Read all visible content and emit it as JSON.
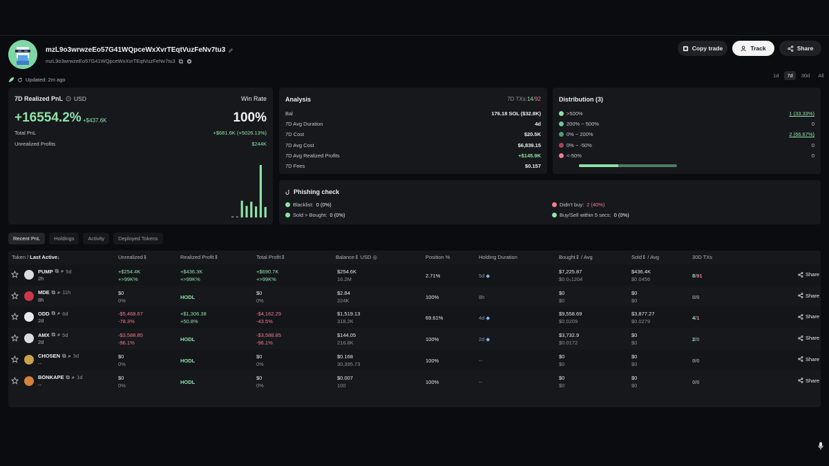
{
  "header": {
    "address": "mzL9o3wrwzeEo57G41WQpceWxXvrTEqtVuzFeNv7tu3",
    "address_small": "mzL9o3wrwzeEo57G41WQpceWxXvrTEqtVuzFeNv7tu3",
    "copy_trade_label": "Copy trade",
    "track_label": "Track",
    "share_label": "Share",
    "updated": "Updated: 2m ago",
    "periods": [
      "1d",
      "7d",
      "30d",
      "All"
    ],
    "active_period": "7d"
  },
  "pnl": {
    "title": "7D Realized PnL",
    "currency": "USD",
    "winrate_label": "Win Rate",
    "pct": "+16554.2%",
    "amount": "+$437.6K",
    "winrate": "100%",
    "total_label": "Total PnL",
    "total_value": "+$681.6K (+5026.13%)",
    "unrealized_label": "Unrealized Profits",
    "unrealized_value": "$244K",
    "bars": [
      0.02,
      0.02,
      0.32,
      0.22,
      0.3,
      0.21,
      1.0,
      0.2
    ]
  },
  "analysis": {
    "title": "Analysis",
    "tx_label": "7D TXs:",
    "tx_buy": "14",
    "tx_sep": "/",
    "tx_sell": "92",
    "rows": [
      {
        "label": "Bal",
        "value": "176.18 SOL ($32.8K)",
        "green": false
      },
      {
        "label": "7D Avg Duration",
        "value": "4d",
        "green": false
      },
      {
        "label": "7D Cost",
        "value": "$20.5K",
        "green": false
      },
      {
        "label": "7D Avg Cost",
        "value": "$6,839.15",
        "green": false
      },
      {
        "label": "7D Avg Realized Profits",
        "value": "+$145.9K",
        "green": true
      },
      {
        "label": "7D Fees",
        "value": "$0.157",
        "green": false
      }
    ]
  },
  "distribution": {
    "title": "Distribution (3)",
    "rows": [
      {
        "label": ">500%",
        "value": "1 (33.33%)",
        "color": "#8ee3a8",
        "underline": true
      },
      {
        "label": "200% ~ 500%",
        "value": "0",
        "color": "#6fc79a",
        "underline": false
      },
      {
        "label": "0% ~ 200%",
        "value": "2 (66.67%)",
        "color": "#4f9e73",
        "underline": true
      },
      {
        "label": "0% ~ -50%",
        "value": "0",
        "color": "#a3455a",
        "underline": false
      },
      {
        "label": "<-50%",
        "value": "0",
        "color": "#f07d8e",
        "underline": false
      }
    ],
    "bar_fill": 0.4
  },
  "phishing": {
    "title": "Phishing check",
    "items": [
      {
        "label": "Blacklist:",
        "value": "0 (0%)",
        "dot": "#8ee3a8",
        "red": false
      },
      {
        "label": "Sold > Bought:",
        "value": "0 (0%)",
        "dot": "#8ee3a8",
        "red": false
      },
      {
        "label": "Didn't buy:",
        "value": "2 (40%)",
        "dot": "#f07d8e",
        "red": true
      },
      {
        "label": "Buy/Sell within 5 secs:",
        "value": "0 (0%)",
        "dot": "#8ee3a8",
        "red": false
      }
    ]
  },
  "tabs": [
    "Recent PnL",
    "Holdings",
    "Activity",
    "Deployed Tokens"
  ],
  "table": {
    "headers": {
      "token": "Token",
      "sep": "/",
      "last_active": "Last Active",
      "unrealized": "Unrealized",
      "realized": "Realized Profit",
      "total": "Total Profit",
      "balance": "Balance",
      "balance_unit": "USD",
      "position": "Position %",
      "holding": "Holding Duration",
      "bought": "Bought",
      "bought_avg": "Avg",
      "sold": "Sold",
      "sold_avg": "Avg",
      "txs": "30D TXs"
    },
    "share_label": "Share",
    "rows": [
      {
        "token": "PUMP",
        "age": "5d",
        "last": "2h",
        "icon": "#d9dde2",
        "unr1": "+$254.4K",
        "unr2": "+>99K%",
        "unr_tone": "green",
        "rea1": "+$436.3K",
        "rea2": "+>99K%",
        "rea_tone": "green",
        "hodl": false,
        "tot1": "+$690.7K",
        "tot2": "+>99K%",
        "tot_tone": "green",
        "bal1": "$254.6K",
        "bal2": "16.2M",
        "pos": "2.71%",
        "hold": "5d",
        "diamond": true,
        "b1": "$7,225.87",
        "b2": "$0.0₅1204",
        "s1": "$436.4K",
        "s2": "$0.0456",
        "tx_a": "8",
        "tx_b": "91",
        "tx_tone": "green"
      },
      {
        "token": "MDE",
        "age": "11h",
        "last": "8h",
        "icon": "#c8384a",
        "unr1": "$0",
        "unr2": "0%",
        "unr_tone": "",
        "rea1": "HODL",
        "rea2": "",
        "rea_tone": "",
        "hodl": true,
        "tot1": "$0",
        "tot2": "0%",
        "tot_tone": "",
        "bal1": "$2.84",
        "bal2": "224K",
        "pos": "100%",
        "hold": "8h",
        "diamond": false,
        "b1": "$0",
        "b2": "$0",
        "s1": "$0",
        "s2": "$0",
        "tx_a": "0",
        "tx_b": "0",
        "tx_tone": ""
      },
      {
        "token": "ODD",
        "age": "6d",
        "last": "2d",
        "icon": "#e8ebee",
        "unr1": "-$5,468.67",
        "unr2": "-78.3%",
        "unr_tone": "red",
        "rea1": "+$1,306.38",
        "rea2": "+50.8%",
        "rea_tone": "green",
        "hodl": false,
        "tot1": "-$4,162.29",
        "tot2": "-43.5%",
        "tot_tone": "red",
        "bal1": "$1,519.13",
        "bal2": "318.2K",
        "pos": "69.61%",
        "hold": "4d",
        "diamond": true,
        "b1": "$9,558.69",
        "b2": "$0.0209",
        "s1": "$3,877.27",
        "s2": "$0.0279",
        "tx_a": "4",
        "tx_b": "1",
        "tx_tone": "green"
      },
      {
        "token": "AMX",
        "age": "5d",
        "last": "2d",
        "icon": "#d9dde2",
        "unr1": "-$3,588.85",
        "unr2": "-96.1%",
        "unr_tone": "red",
        "rea1": "HODL",
        "rea2": "",
        "rea_tone": "",
        "hodl": true,
        "tot1": "-$3,588.85",
        "tot2": "-96.1%",
        "tot_tone": "red",
        "bal1": "$144.05",
        "bal2": "216.8K",
        "pos": "100%",
        "hold": "2d",
        "diamond": true,
        "b1": "$3,732.9",
        "b2": "$0.0172",
        "s1": "$0",
        "s2": "$0",
        "tx_a": "2",
        "tx_b": "0",
        "tx_tone": "green"
      },
      {
        "token": "CHOSEN",
        "age": "3d",
        "last": "--",
        "icon": "#c9a24a",
        "unr1": "$0",
        "unr2": "0%",
        "unr_tone": "",
        "rea1": "HODL",
        "rea2": "",
        "rea_tone": "",
        "hodl": true,
        "tot1": "$0",
        "tot2": "0%",
        "tot_tone": "",
        "bal1": "$0.168",
        "bal2": "30,395.73",
        "pos": "100%",
        "hold": "--",
        "diamond": false,
        "b1": "$0",
        "b2": "$0",
        "s1": "$0",
        "s2": "$0",
        "tx_a": "0",
        "tx_b": "0",
        "tx_tone": ""
      },
      {
        "token": "BONKAPE",
        "age": "1d",
        "last": "--",
        "icon": "#d1843a",
        "unr1": "$0",
        "unr2": "0%",
        "unr_tone": "",
        "rea1": "HODL",
        "rea2": "",
        "rea_tone": "",
        "hodl": true,
        "tot1": "$0",
        "tot2": "0%",
        "tot_tone": "",
        "bal1": "$0.007",
        "bal2": "100",
        "pos": "100%",
        "hold": "--",
        "diamond": false,
        "b1": "$0",
        "b2": "$0",
        "s1": "$0",
        "s2": "$0",
        "tx_a": "0",
        "tx_b": "0",
        "tx_tone": ""
      }
    ]
  }
}
